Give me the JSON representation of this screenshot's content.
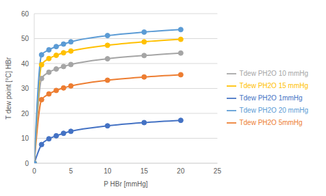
{
  "chart_data": {
    "type": "line",
    "x_label": "P HBr [mmHg]",
    "y_label": "T dew point [°C] HBr",
    "x": [
      0,
      1,
      2,
      3,
      4,
      5,
      10,
      15,
      20
    ],
    "series": [
      {
        "name": "Tdew PH2O 1mmHg",
        "color": "#4472c4",
        "values": [
          0,
          7.5,
          9.8,
          11,
          12,
          12.8,
          15,
          16.3,
          17.2
        ]
      },
      {
        "name": "Tdew PH2O 5mmHg",
        "color": "#ed7d31",
        "values": [
          0,
          25.5,
          27.8,
          29.2,
          30.2,
          31,
          33.3,
          34.6,
          35.5
        ]
      },
      {
        "name": "Tdew PH2O 10 mmHg",
        "color": "#a5a5a5",
        "values": [
          0,
          34,
          36.5,
          37.8,
          38.8,
          39.6,
          41.9,
          43.2,
          44.2
        ]
      },
      {
        "name": "Tdew PH2O 15 mmHg",
        "color": "#ffc000",
        "values": [
          0,
          39.5,
          42,
          43.3,
          44.3,
          45,
          47.3,
          48.7,
          49.7
        ]
      },
      {
        "name": "Tdew PH2O 20 mmHg",
        "color": "#5b9bd5",
        "values": [
          0,
          43.5,
          45.5,
          46.8,
          47.8,
          48.7,
          51.2,
          52.6,
          53.6
        ]
      }
    ],
    "xlim": [
      0,
      25
    ],
    "xticks": [
      0,
      5,
      10,
      15,
      20,
      25
    ],
    "ylim": [
      0,
      60
    ],
    "yticks": [
      0,
      10,
      20,
      30,
      40,
      50,
      60
    ],
    "grid": true,
    "legend": "right",
    "marker": "circle",
    "line_style": "smooth"
  }
}
